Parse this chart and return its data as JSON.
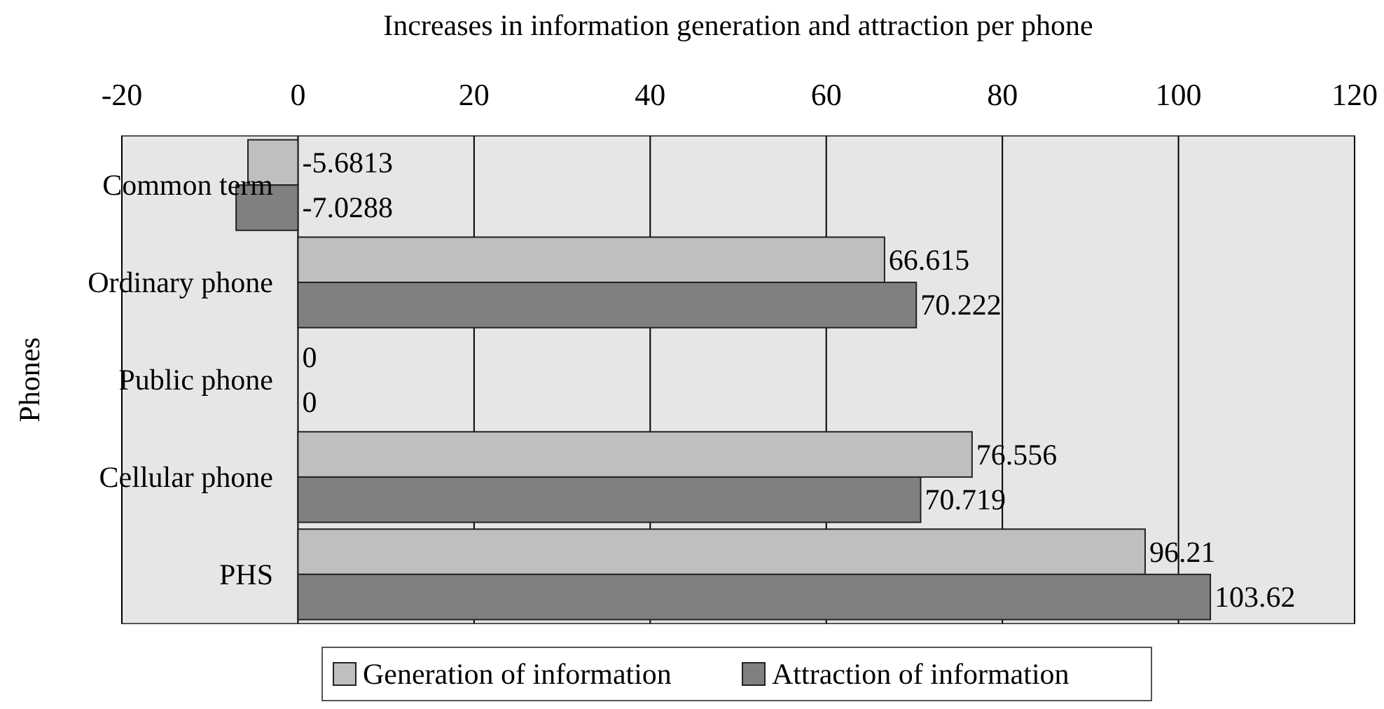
{
  "chart_data": {
    "type": "bar",
    "orientation": "horizontal",
    "xlabel": "Increases in information generation and attraction per phone",
    "ylabel": "Phones",
    "categories": [
      "Common term",
      "Ordinary phone",
      "Public phone",
      "Cellular phone",
      "PHS"
    ],
    "series": [
      {
        "name": "Generation of information",
        "color": "#bfbfbf",
        "values": [
          -5.6813,
          66.615,
          0,
          76.556,
          96.21
        ]
      },
      {
        "name": "Attraction of information",
        "color": "#808080",
        "values": [
          -7.0288,
          70.222,
          0,
          70.719,
          103.62
        ]
      }
    ],
    "xlim": [
      -20,
      120
    ],
    "xticks": [
      -20,
      0,
      20,
      40,
      60,
      80,
      100,
      120
    ],
    "grid": "x",
    "legend": "bottom",
    "data_labels": true
  }
}
